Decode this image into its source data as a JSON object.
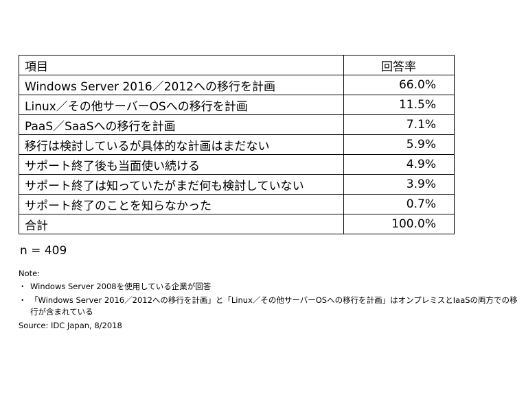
{
  "table": {
    "header": [
      "項目",
      "回答率"
    ],
    "rows": [
      [
        "Windows Server 2016／2012への移行を計画",
        "66.0%"
      ],
      [
        "Linux／その他サーバーOSへの移行を計画",
        "11.5%"
      ],
      [
        "PaaS／SaaSへの移行を計画",
        "7.1%"
      ],
      [
        "移行は検討しているが具体的な計画はまだない",
        "5.9%"
      ],
      [
        "サポート終了後も当面使い続ける",
        "4.9%"
      ],
      [
        "サポート終了は知っていたがまだ何も検討していない",
        "3.9%"
      ],
      [
        "サポート終了のことを知らなかった",
        "0.7%"
      ],
      [
        "合計",
        "100.0%"
      ]
    ]
  },
  "sample": "n = 409",
  "notes": {
    "title": "Note:",
    "items": [
      "Windows Server 2008を使用している企業が回答",
      "「Windows Server 2016／2012への移行を計画」と「Linux／その他サーバーOSへの移行を計画」はオンプレミスとIaaSの両方での移行が含まれている"
    ],
    "source": "Source: IDC Japan, 8/2018"
  }
}
